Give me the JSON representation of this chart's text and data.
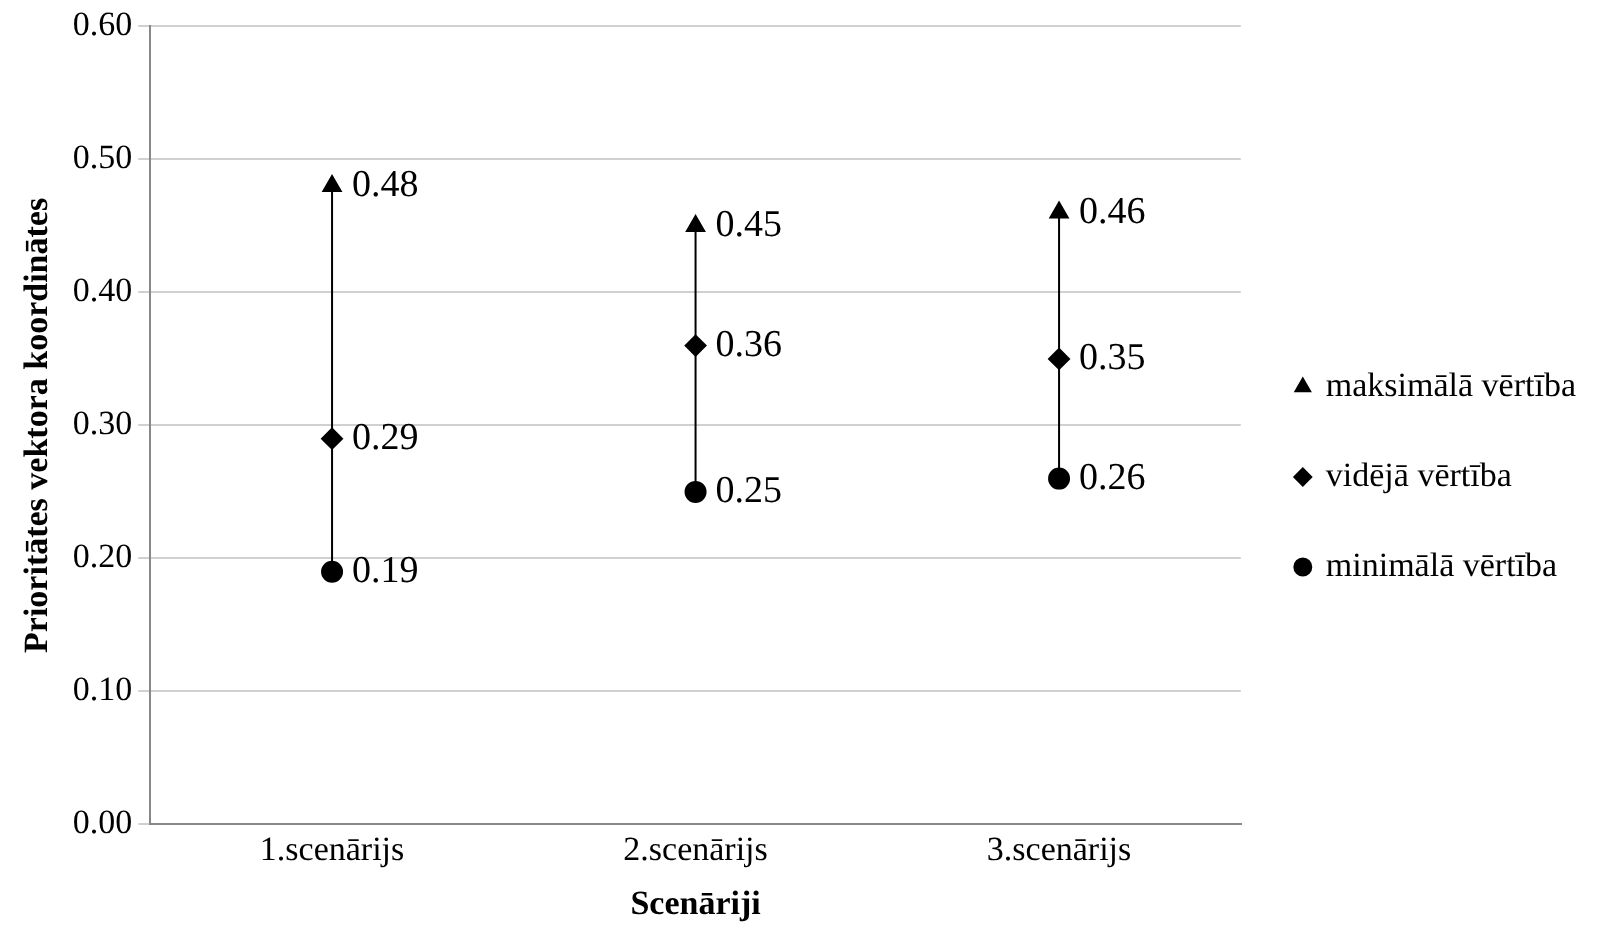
{
  "chart_data": {
    "type": "scatter",
    "xlabel": "Scenāriji",
    "ylabel": "Prioritātes vektora koordinātes",
    "categories": [
      "1.scenārijs",
      "2.scenārijs",
      "3.scenārijs"
    ],
    "series": [
      {
        "name": "maksimālā vērtība",
        "color": "#000000",
        "marker": "triangle",
        "values": [
          0.48,
          0.45,
          0.46
        ]
      },
      {
        "name": "vidējā vērtība",
        "color": "#000000",
        "marker": "diamond",
        "values": [
          0.29,
          0.36,
          0.35
        ]
      },
      {
        "name": "minimālā vērtība",
        "color": "#000000",
        "marker": "circle",
        "values": [
          0.19,
          0.25,
          0.26
        ]
      }
    ],
    "ylim": [
      0,
      0.6
    ],
    "yticks": [
      {
        "value": 0,
        "label": "0.00"
      },
      {
        "value": 0.1,
        "label": "0.10"
      },
      {
        "value": 0.2,
        "label": "0.20"
      },
      {
        "value": 0.3,
        "label": "0.30"
      },
      {
        "value": 0.4,
        "label": "0.40"
      },
      {
        "value": 0.5,
        "label": "0.50"
      },
      {
        "value": 0.6,
        "label": "0.60"
      }
    ],
    "grid": "y",
    "legend": "right",
    "data_labels": true
  }
}
